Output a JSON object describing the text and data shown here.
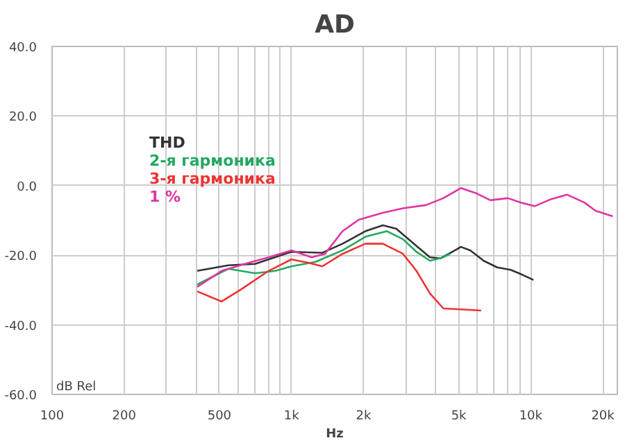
{
  "chart_data": {
    "type": "line",
    "title": "AD",
    "xlabel": "Hz",
    "ylabel": "dB Rel",
    "log": "x",
    "grid": true,
    "legend": "top left",
    "line_style": "solid",
    "marker": "none",
    "xlim": [
      100,
      23000
    ],
    "ylim": [
      -60,
      40
    ],
    "xticks": [
      {
        "value": 100,
        "label": "100"
      },
      {
        "value": 200,
        "label": "200"
      },
      {
        "value": 300,
        "label": null
      },
      {
        "value": 400,
        "label": null
      },
      {
        "value": 500,
        "label": "500"
      },
      {
        "value": 600,
        "label": null
      },
      {
        "value": 700,
        "label": null
      },
      {
        "value": 800,
        "label": null
      },
      {
        "value": 900,
        "label": null
      },
      {
        "value": 1000,
        "label": "1k"
      },
      {
        "value": 2000,
        "label": "2k"
      },
      {
        "value": 3000,
        "label": null
      },
      {
        "value": 4000,
        "label": null
      },
      {
        "value": 5000,
        "label": "5k"
      },
      {
        "value": 6000,
        "label": null
      },
      {
        "value": 7000,
        "label": null
      },
      {
        "value": 8000,
        "label": null
      },
      {
        "value": 9000,
        "label": null
      },
      {
        "value": 10000,
        "label": "10k"
      },
      {
        "value": 20000,
        "label": "20k"
      }
    ],
    "yticks": [
      {
        "value": -60,
        "label": "-60.0"
      },
      {
        "value": -40,
        "label": "-40.0"
      },
      {
        "value": -20,
        "label": "-20.0"
      },
      {
        "value": 0,
        "label": "0.0"
      },
      {
        "value": 20,
        "label": "20.0"
      },
      {
        "value": 40,
        "label": "40.0"
      }
    ],
    "series": [
      {
        "name": "THD",
        "color": "#333333",
        "x": [
          404,
          545,
          705,
          1000,
          1346,
          1635,
          2037,
          2410,
          2742,
          3327,
          3793,
          4204,
          4910,
          5105,
          5589,
          6360,
          7236,
          8235,
          9141,
          10260
        ],
        "values": [
          -24.5,
          -22.9,
          -22.5,
          -19.0,
          -19.3,
          -16.7,
          -13.1,
          -11.4,
          -12.4,
          -17.3,
          -20.6,
          -20.9,
          -18.3,
          -17.6,
          -18.6,
          -21.6,
          -23.5,
          -24.2,
          -25.5,
          -27.1
        ]
      },
      {
        "name": "2-я гармоника",
        "color": "#22a861",
        "x": [
          404,
          545,
          705,
          856,
          1000,
          1262,
          1635,
          2037,
          2506,
          2926,
          3327,
          3793,
          4313,
          4603
        ],
        "values": [
          -28.4,
          -23.9,
          -25.2,
          -24.5,
          -23.2,
          -21.9,
          -18.6,
          -14.7,
          -13.1,
          -15.4,
          -19.0,
          -21.6,
          -20.6,
          -19.6
        ]
      },
      {
        "name": "3-я гармоника",
        "color": "#ee3333",
        "x": [
          404,
          511,
          620,
          803,
          1000,
          1183,
          1346,
          1635,
          2037,
          2410,
          2926,
          3327,
          3793,
          4313,
          5240,
          6200
        ],
        "values": [
          -30.4,
          -33.3,
          -29.7,
          -24.5,
          -21.2,
          -22.2,
          -23.2,
          -19.6,
          -16.7,
          -16.7,
          -19.6,
          -24.5,
          -31.0,
          -35.3,
          -35.6,
          -35.9
        ]
      },
      {
        "name": "1 %",
        "color": "#e0359f",
        "x": [
          404,
          511,
          661,
          803,
          1000,
          1214,
          1381,
          1635,
          1910,
          2410,
          2926,
          3647,
          4313,
          5105,
          5961,
          6783,
          8017,
          9141,
          10400,
          12140,
          14190,
          16790,
          18620,
          22000
        ],
        "values": [
          -29.1,
          -24.5,
          -22.2,
          -20.6,
          -18.6,
          -20.6,
          -19.6,
          -13.1,
          -9.8,
          -7.8,
          -6.5,
          -5.6,
          -3.6,
          -0.7,
          -2.3,
          -4.2,
          -3.6,
          -4.9,
          -5.9,
          -3.9,
          -2.6,
          -4.9,
          -7.2,
          -8.8
        ]
      }
    ]
  }
}
